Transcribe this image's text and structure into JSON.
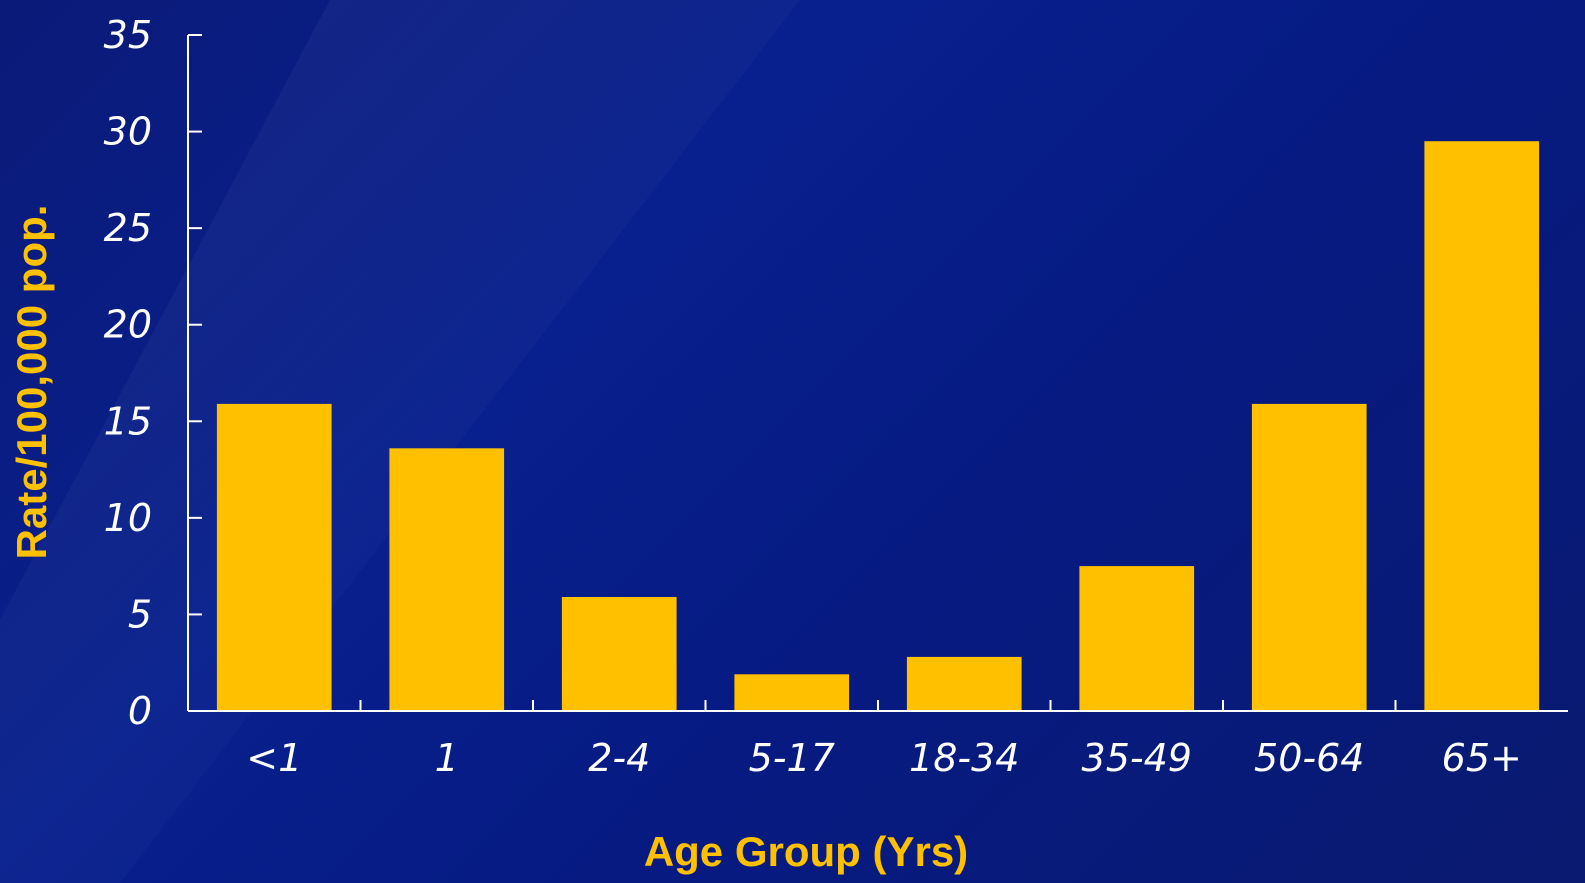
{
  "chart_data": {
    "type": "bar",
    "title": "",
    "xlabel": "Age Group (Yrs)",
    "ylabel": "Rate/100,000 pop.",
    "categories": [
      "<1",
      "1",
      "2-4",
      "5-17",
      "18-34",
      "35-49",
      "50-64",
      "65+"
    ],
    "values": [
      15.9,
      13.6,
      5.9,
      1.9,
      2.8,
      7.5,
      15.9,
      29.5
    ],
    "ylim": [
      0,
      35
    ],
    "yticks": [
      "0",
      "5",
      "10",
      "15",
      "20",
      "25",
      "30",
      "35"
    ],
    "grid": false,
    "legend": "none",
    "bar_color": "#ffc000",
    "axis_color": "#ffffff",
    "background_color": "#0a1d86"
  }
}
